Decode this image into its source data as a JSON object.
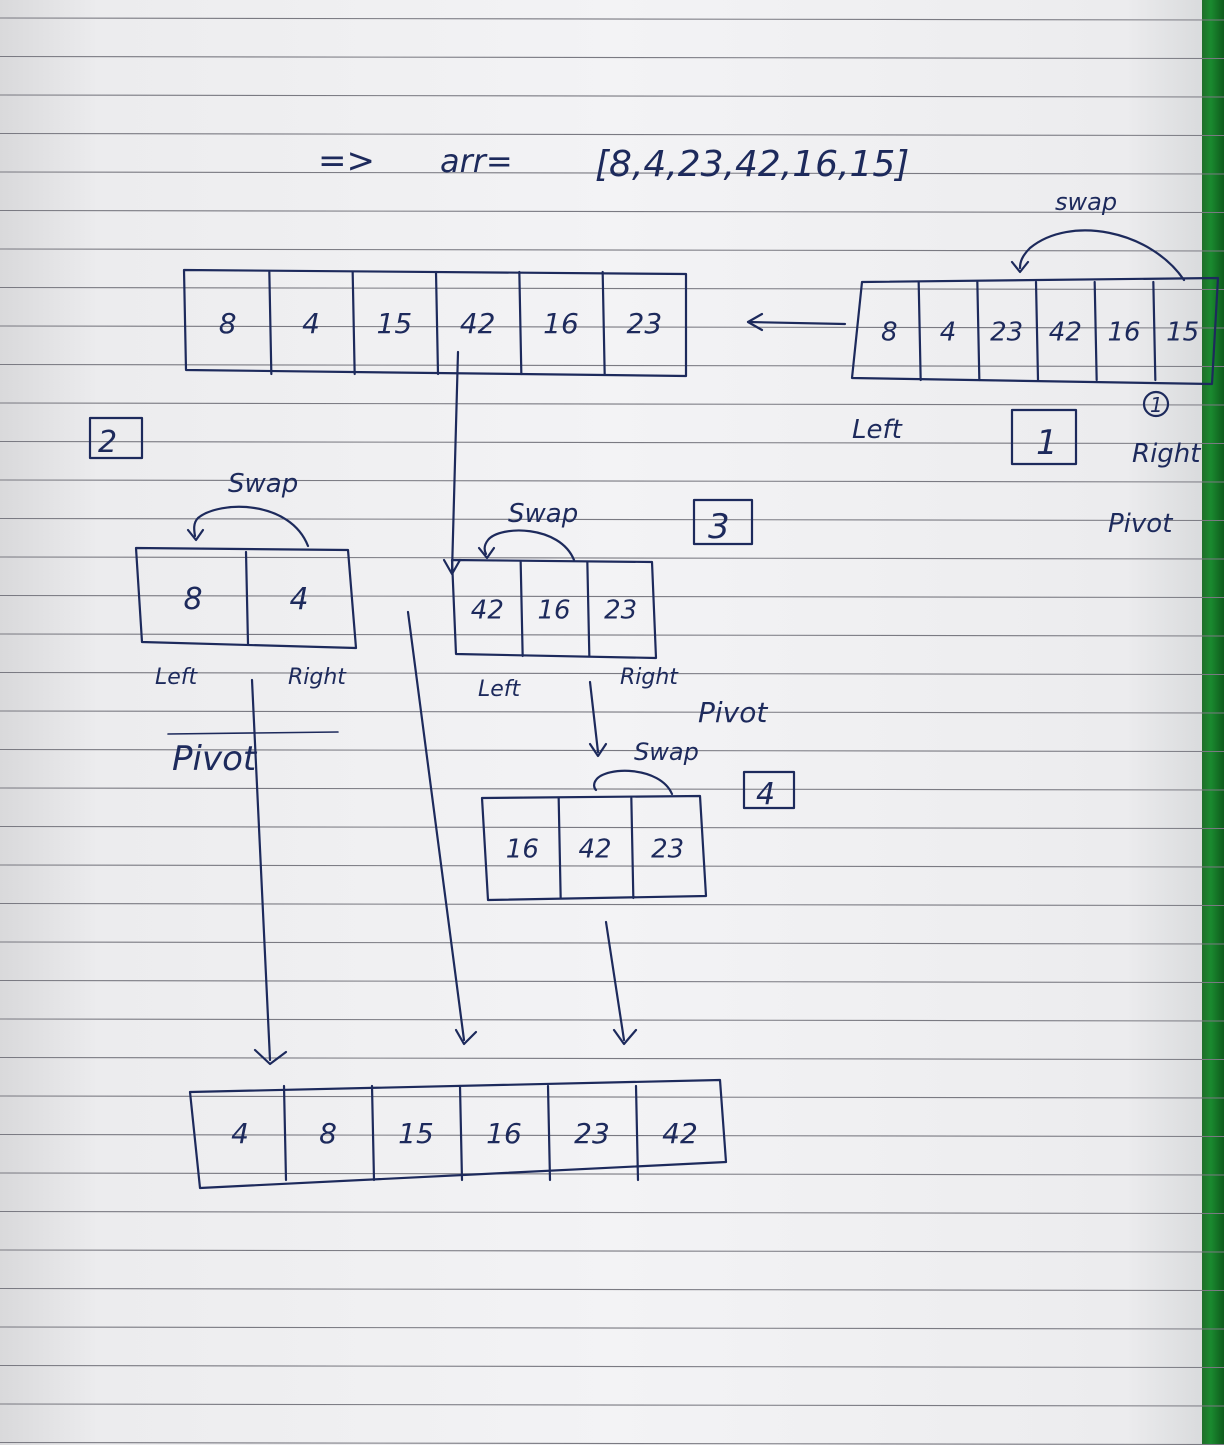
{
  "header": {
    "arrow_prefix": "=>",
    "arr_label": "arr=",
    "array_text": "[8,4,23,42,16,15]"
  },
  "step1": {
    "array": [
      "8",
      "4",
      "23",
      "42",
      "16",
      "15"
    ],
    "swap_label": "swap",
    "pivot_marker": "1",
    "step_number": "1",
    "left_label": "Left",
    "right_label": "Right",
    "pivot_label": "Pivot"
  },
  "after_step1": {
    "array": [
      "8",
      "4",
      "15",
      "42",
      "16",
      "23"
    ]
  },
  "step2": {
    "step_number": "2",
    "swap_label": "Swap",
    "array": [
      "8",
      "4"
    ],
    "left_label": "Left",
    "right_label": "Right",
    "pivot_label": "Pivot"
  },
  "step3": {
    "step_number": "3",
    "swap_label": "Swap",
    "array": [
      "42",
      "16",
      "23"
    ],
    "left_label": "Left",
    "right_label": "Right",
    "pivot_label": "Pivot"
  },
  "step4": {
    "step_number": "4",
    "swap_label": "Swap",
    "array": [
      "16",
      "42",
      "23"
    ]
  },
  "result": {
    "array": [
      "4",
      "8",
      "15",
      "16",
      "23",
      "42"
    ]
  }
}
